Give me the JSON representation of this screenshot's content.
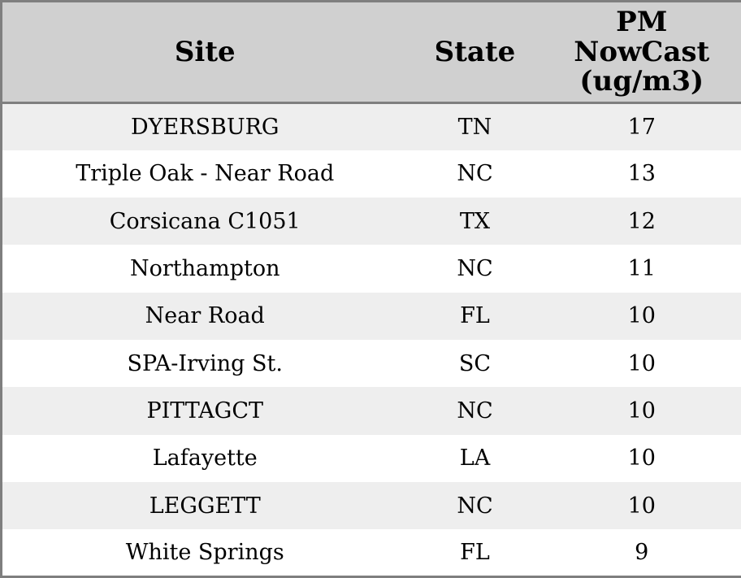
{
  "colors": {
    "header_bg": "#d0d0d0",
    "stripe_bg": "#eeeeee",
    "row_bg": "#ffffff",
    "border": "#7f7f7f",
    "text": "#000000"
  },
  "chart_data": {
    "type": "table",
    "title": "",
    "columns": [
      {
        "id": "site",
        "label": "Site"
      },
      {
        "id": "state",
        "label": "State"
      },
      {
        "id": "pm",
        "label": "PM NowCast (ug/m3)"
      }
    ],
    "rows": [
      {
        "site": "DYERSBURG",
        "state": "TN",
        "pm": "17"
      },
      {
        "site": "Triple Oak - Near Road",
        "state": "NC",
        "pm": "13"
      },
      {
        "site": "Corsicana C1051",
        "state": "TX",
        "pm": "12"
      },
      {
        "site": "Northampton",
        "state": "NC",
        "pm": "11"
      },
      {
        "site": "Near Road",
        "state": "FL",
        "pm": "10"
      },
      {
        "site": "SPA-Irving St.",
        "state": "SC",
        "pm": "10"
      },
      {
        "site": "PITTAGCT",
        "state": "NC",
        "pm": "10"
      },
      {
        "site": "Lafayette",
        "state": "LA",
        "pm": "10"
      },
      {
        "site": "LEGGETT",
        "state": "NC",
        "pm": "10"
      },
      {
        "site": "White Springs",
        "state": "FL",
        "pm": "9"
      }
    ]
  }
}
